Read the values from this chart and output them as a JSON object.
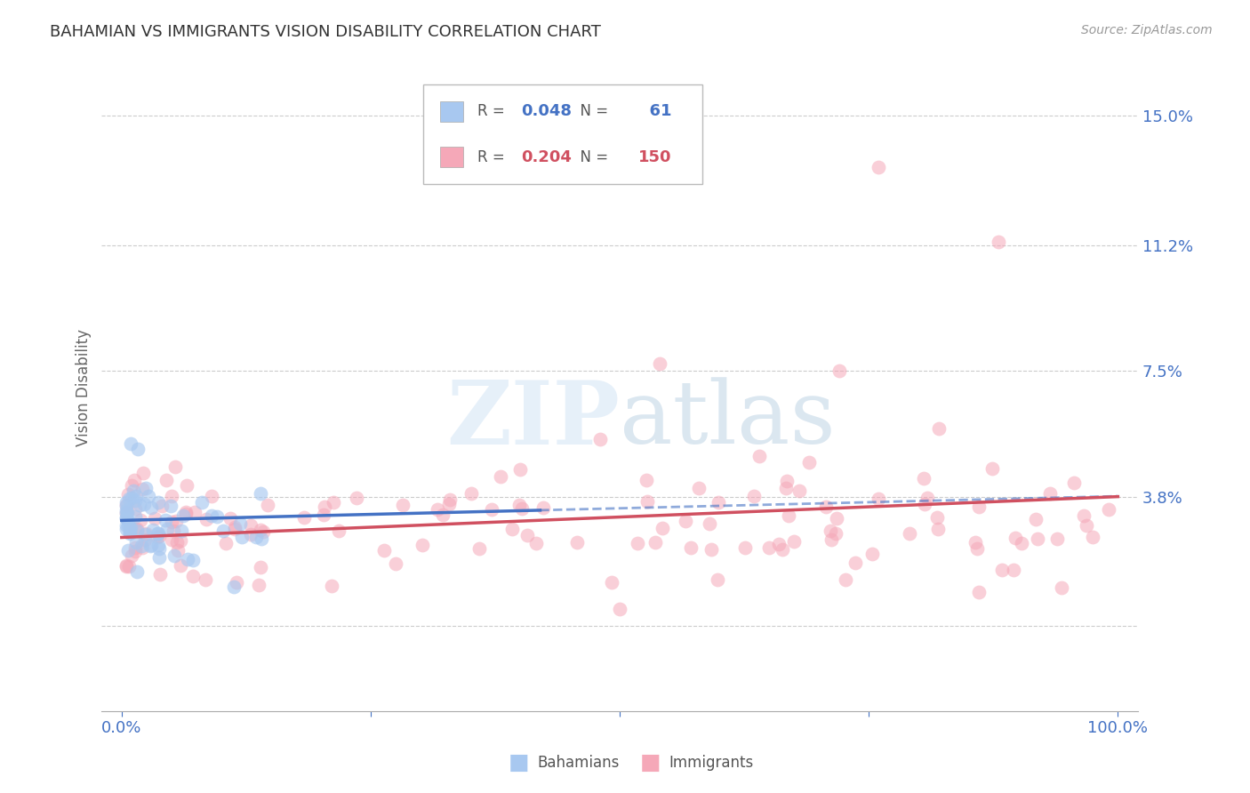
{
  "title": "BAHAMIAN VS IMMIGRANTS VISION DISABILITY CORRELATION CHART",
  "source": "Source: ZipAtlas.com",
  "ylabel": "Vision Disability",
  "xlim": [
    -0.02,
    1.02
  ],
  "ylim": [
    -0.025,
    0.165
  ],
  "yticks": [
    0.0,
    0.038,
    0.075,
    0.112,
    0.15
  ],
  "ytick_labels": [
    "",
    "3.8%",
    "7.5%",
    "11.2%",
    "15.0%"
  ],
  "xticks": [
    0.0,
    0.25,
    0.5,
    0.75,
    1.0
  ],
  "xtick_labels": [
    "0.0%",
    "",
    "",
    "",
    "100.0%"
  ],
  "bahamian_color": "#a8c8f0",
  "immigrant_color": "#f5a8b8",
  "bahamian_R": 0.048,
  "bahamian_N": 61,
  "immigrant_R": 0.204,
  "immigrant_N": 150,
  "bahamian_line_color": "#4472c4",
  "immigrant_line_color": "#d05060",
  "legend_R_color": "#4472c4",
  "legend_R2_color": "#d05060",
  "bah_line_x_end": 0.42,
  "bah_line_y_start": 0.031,
  "bah_line_y_end": 0.034,
  "imm_line_y_start": 0.026,
  "imm_line_y_end": 0.038
}
